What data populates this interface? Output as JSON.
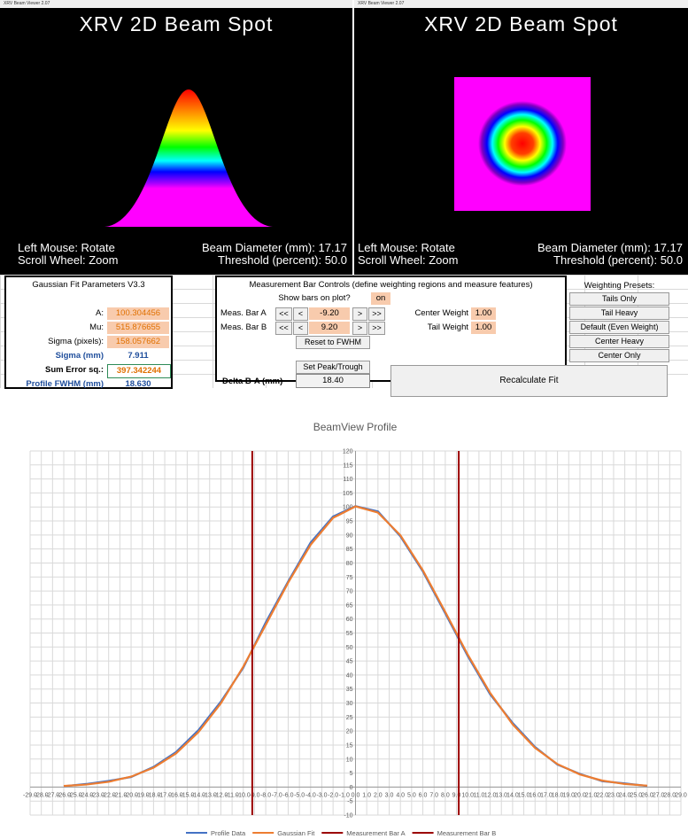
{
  "windows": [
    {
      "title_bar": "XRV Beam Viewer 2.07",
      "heading": "XRV 2D Beam Spot",
      "hint_rotate": "Left Mouse: Rotate",
      "hint_zoom": "Scroll Wheel: Zoom",
      "diameter": "Beam Diameter (mm): 17.17",
      "threshold": "Threshold (percent): 50.0"
    },
    {
      "title_bar": "XRV Beam Viewer 2.07",
      "heading": "XRV 2D Beam Spot",
      "hint_rotate": "Left Mouse: Rotate",
      "hint_zoom": "Scroll Wheel: Zoom",
      "diameter": "Beam Diameter (mm): 17.17",
      "threshold": "Threshold (percent): 50.0"
    }
  ],
  "fit_panel": {
    "title": "Gaussian Fit Parameters V3.3",
    "rows": [
      [
        "A:",
        "100.304456"
      ],
      [
        "Mu:",
        "515.876655"
      ],
      [
        "Sigma (pixels):",
        "158.057662"
      ],
      [
        "Sigma (mm)",
        "7.911"
      ],
      [
        "Sum Error sq.:",
        "397.342244"
      ],
      [
        "Profile FWHM (mm)",
        "18.630"
      ]
    ]
  },
  "bar_panel": {
    "title": "Measurement Bar Controls (define weighting regions and measure features)",
    "show_label": "Show bars on plot?",
    "show_value": "on",
    "bars": [
      {
        "label": "Meas. Bar A",
        "value": "-9.20"
      },
      {
        "label": "Meas. Bar B",
        "value": "9.20"
      }
    ],
    "buttons": {
      "big_left": "<<",
      "left": "<",
      "right": ">",
      "big_right": ">>",
      "reset": "Reset to FWHM",
      "peak": "Set Peak/Trough",
      "recalc": "Recalculate Fit"
    },
    "delta_label": "Delta B-A (mm)",
    "delta_value": "18.40",
    "weights": [
      {
        "label": "Center Weight",
        "value": "1.00"
      },
      {
        "label": "Tail Weight",
        "value": "1.00"
      }
    ]
  },
  "presets": {
    "title": "Weighting Presets:",
    "buttons": [
      "Tails Only",
      "Tail Heavy",
      "Default (Even Weight)",
      "Center Heavy",
      "Center Only"
    ]
  },
  "chart_data": {
    "type": "line",
    "title": "BeamView Profile",
    "x": [
      -26,
      -24,
      -22,
      -20,
      -18,
      -16,
      -14,
      -12,
      -10,
      -8,
      -6,
      -4,
      -2,
      0,
      2,
      4,
      6,
      8,
      10,
      12,
      14,
      16,
      18,
      20,
      22,
      24,
      26
    ],
    "series": [
      {
        "name": "Profile Data",
        "color": "#4472c4",
        "values": [
          0.3,
          1.1,
          2.2,
          3.6,
          7.2,
          12.5,
          20.3,
          30.5,
          42.6,
          58.8,
          73.4,
          87.3,
          96.6,
          100.3,
          98.4,
          89.5,
          77.0,
          62.0,
          46.8,
          33.1,
          22.9,
          14.3,
          8.0,
          4.7,
          2.1,
          1.3,
          0.4
        ]
      },
      {
        "name": "Gaussian Fit",
        "color": "#ed7d31",
        "values": [
          0.4,
          0.9,
          1.89,
          3.73,
          6.9,
          12.0,
          19.6,
          29.9,
          43.0,
          57.9,
          73.0,
          86.5,
          96.1,
          100.2,
          98.0,
          89.9,
          77.4,
          62.5,
          47.3,
          33.6,
          22.4,
          14.0,
          8.2,
          4.5,
          2.3,
          1.1,
          0.5
        ]
      },
      {
        "name": "Measurement Bar A",
        "color": "#9b0000",
        "x": [
          -9.2,
          -9.2
        ],
        "values": [
          -10,
          120
        ]
      },
      {
        "name": "Measurement Bar B",
        "color": "#9b0000",
        "x": [
          9.2,
          9.2
        ],
        "values": [
          -10,
          120
        ]
      }
    ],
    "xlim": [
      -29,
      29
    ],
    "xticks": [
      {
        "value": -29,
        "label": "-29.0"
      },
      {
        "value": -28,
        "label": "-28.0"
      },
      {
        "value": -27,
        "label": "-27.0"
      },
      {
        "value": -26,
        "label": "-26.0"
      },
      {
        "value": -25,
        "label": "-25.0"
      },
      {
        "value": -24,
        "label": "-24.0"
      },
      {
        "value": -23,
        "label": "-23.0"
      },
      {
        "value": -22,
        "label": "-22.0"
      },
      {
        "value": -21,
        "label": "-21.0"
      },
      {
        "value": -20,
        "label": "-20.0"
      },
      {
        "value": -19,
        "label": "-19.0"
      },
      {
        "value": -18,
        "label": "-18.0"
      },
      {
        "value": -17,
        "label": "-17.0"
      },
      {
        "value": -16,
        "label": "-16.0"
      },
      {
        "value": -15,
        "label": "-15.0"
      },
      {
        "value": -14,
        "label": "-14.0"
      },
      {
        "value": -13,
        "label": "-13.0"
      },
      {
        "value": -12,
        "label": "-12.0"
      },
      {
        "value": -11,
        "label": "-11.0"
      },
      {
        "value": -10,
        "label": "-10.0"
      },
      {
        "value": -9,
        "label": "-9.0"
      },
      {
        "value": -8,
        "label": "-8.0"
      },
      {
        "value": -7,
        "label": "-7.0"
      },
      {
        "value": -6,
        "label": "-6.0"
      },
      {
        "value": -5,
        "label": "-5.0"
      },
      {
        "value": -4,
        "label": "-4.0"
      },
      {
        "value": -3,
        "label": "-3.0"
      },
      {
        "value": -2,
        "label": "-2.0"
      },
      {
        "value": -1,
        "label": "-1.0"
      },
      {
        "value": 0,
        "label": "0.0"
      },
      {
        "value": 1,
        "label": "1.0"
      },
      {
        "value": 2,
        "label": "2.0"
      },
      {
        "value": 3,
        "label": "3.0"
      },
      {
        "value": 4,
        "label": "4.0"
      },
      {
        "value": 5,
        "label": "5.0"
      },
      {
        "value": 6,
        "label": "6.0"
      },
      {
        "value": 7,
        "label": "7.0"
      },
      {
        "value": 8,
        "label": "8.0"
      },
      {
        "value": 9,
        "label": "9.0"
      },
      {
        "value": 10,
        "label": "10.0"
      },
      {
        "value": 11,
        "label": "11.0"
      },
      {
        "value": 12,
        "label": "12.0"
      },
      {
        "value": 13,
        "label": "13.0"
      },
      {
        "value": 14,
        "label": "14.0"
      },
      {
        "value": 15,
        "label": "15.0"
      },
      {
        "value": 16,
        "label": "16.0"
      },
      {
        "value": 17,
        "label": "17.0"
      },
      {
        "value": 18,
        "label": "18.0"
      },
      {
        "value": 19,
        "label": "19.0"
      },
      {
        "value": 20,
        "label": "20.0"
      },
      {
        "value": 21,
        "label": "21.0"
      },
      {
        "value": 22,
        "label": "22.0"
      },
      {
        "value": 23,
        "label": "23.0"
      },
      {
        "value": 24,
        "label": "24.0"
      },
      {
        "value": 25,
        "label": "25.0"
      },
      {
        "value": 26,
        "label": "26.0"
      },
      {
        "value": 27,
        "label": "27.0"
      },
      {
        "value": 28,
        "label": "28.0"
      },
      {
        "value": 29,
        "label": "29.0"
      }
    ],
    "ylim": [
      -10,
      120
    ],
    "yticks": [
      -10,
      -5,
      0,
      5,
      10,
      15,
      20,
      25,
      30,
      35,
      40,
      45,
      50,
      55,
      60,
      65,
      70,
      75,
      80,
      85,
      90,
      95,
      100,
      105,
      110,
      115,
      120
    ],
    "grid": true
  }
}
